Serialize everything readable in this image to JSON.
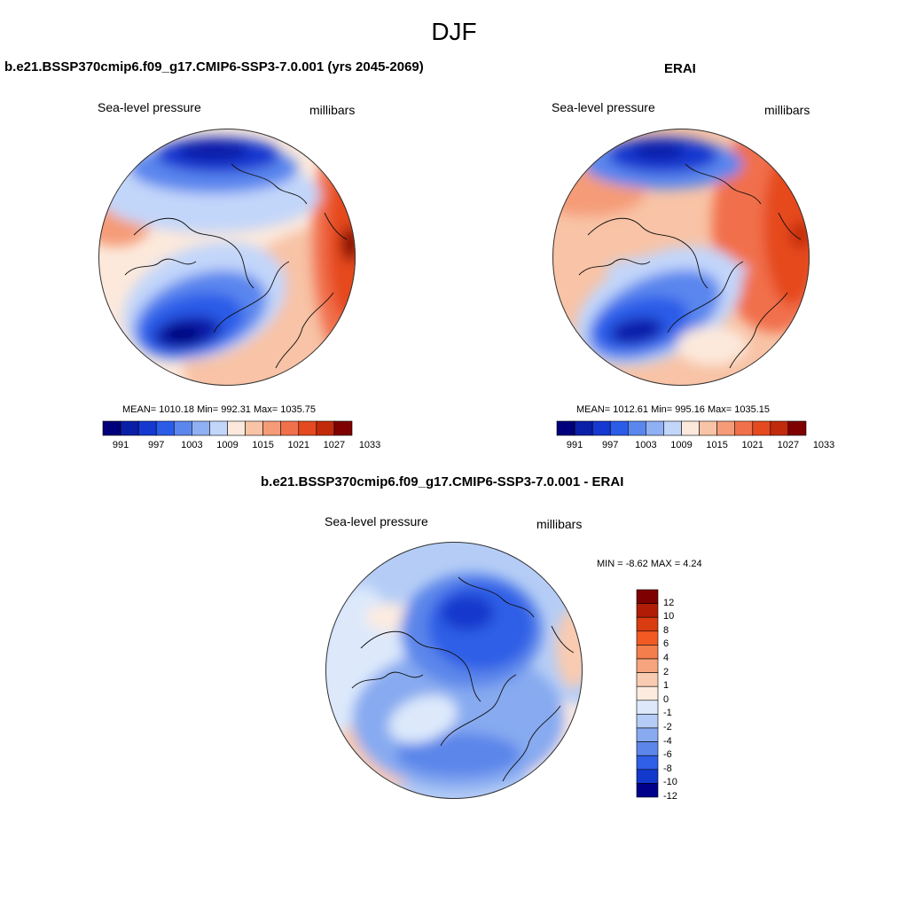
{
  "figure": {
    "title": "DJF"
  },
  "panels": [
    {
      "title": "b.e21.BSSP370cmip6.f09_g17.CMIP6-SSP3-7.0.001 (yrs 2045-2069)",
      "left_label": "Sea-level pressure",
      "right_label": "millibars",
      "stats": "MEAN= 1010.18   Min= 992.31   Max= 1035.75",
      "colorbar_ticks": [
        "991",
        "997",
        "1003",
        "1009",
        "1015",
        "1021",
        "1027",
        "1033"
      ]
    },
    {
      "title": "ERAI",
      "left_label": "Sea-level pressure",
      "right_label": "millibars",
      "stats": "MEAN= 1012.61   Min= 995.16   Max= 1035.15",
      "colorbar_ticks": [
        "991",
        "997",
        "1003",
        "1009",
        "1015",
        "1021",
        "1027",
        "1033"
      ]
    },
    {
      "title": "b.e21.BSSP370cmip6.f09_g17.CMIP6-SSP3-7.0.001 - ERAI",
      "left_label": "Sea-level pressure",
      "right_label": "millibars",
      "stats": "MIN =  -8.62 MAX =   4.24",
      "colorbar_ticks": [
        "12",
        "10",
        "8",
        "6",
        "4",
        "2",
        "1",
        "0",
        "-1",
        "-2",
        "-4",
        "-6",
        "-8",
        "-10",
        "-12"
      ]
    }
  ],
  "colors": {
    "abs_scale": [
      "#00007a",
      "#0a1fa8",
      "#1538d0",
      "#2b5ce8",
      "#5a86ee",
      "#8fb0f3",
      "#c2d6fa",
      "#fce9dc",
      "#f8c3a6",
      "#f59b77",
      "#f1704c",
      "#e5491f",
      "#c22a0c",
      "#7f0000"
    ],
    "diff_scale": [
      "#7f0000",
      "#b11c06",
      "#d83c10",
      "#f25a24",
      "#f47e4c",
      "#f6a47e",
      "#f9cbb1",
      "#fdebe0",
      "#dde9fb",
      "#b5cdf6",
      "#87aaf0",
      "#5c86ea",
      "#2f5fe6",
      "#1338cc",
      "#00008a"
    ]
  }
}
